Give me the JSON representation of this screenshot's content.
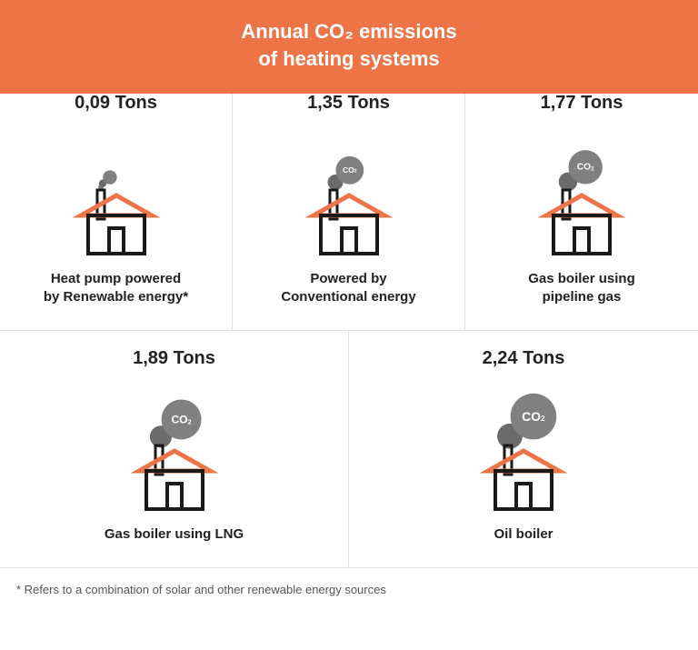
{
  "header": {
    "title_line1": "Annual CO₂ emissions",
    "title_line2": "of heating systems",
    "bg_color": "#ed7446",
    "text_color": "#ffffff"
  },
  "colors": {
    "roof": "#ed7446",
    "cloud": "#808080",
    "cloud_dark": "#6b6b6b",
    "house_stroke": "#1a1a1a",
    "divider": "#e0e0e0",
    "text": "#222222",
    "footnote": "#555555"
  },
  "items": [
    {
      "value": "0,09 Tons",
      "label": "Heat pump powered\nby Renewable energy*",
      "cloud_scale": 0.35,
      "co2_label": false
    },
    {
      "value": "1,35 Tons",
      "label": "Powered by\nConventional energy",
      "cloud_scale": 0.7,
      "co2_label": true
    },
    {
      "value": "1,77 Tons",
      "label": "Gas boiler using\npipeline gas",
      "cloud_scale": 0.85,
      "co2_label": true
    },
    {
      "value": "1,89 Tons",
      "label": "Gas boiler using LNG",
      "cloud_scale": 1.0,
      "co2_label": true
    },
    {
      "value": "2,24 Tons",
      "label": "Oil boiler",
      "cloud_scale": 1.15,
      "co2_label": true
    }
  ],
  "footnote": "* Refers to a combination of solar and other renewable energy sources",
  "icon": {
    "house_base_size": 70,
    "cloud_base_r": 22
  }
}
